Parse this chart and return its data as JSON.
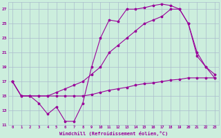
{
  "xlabel": "Windchill (Refroidissement éolien,°C)",
  "bg_color": "#cceedd",
  "grid_color": "#aabbcc",
  "line_color": "#990099",
  "xlim": [
    -0.5,
    23.5
  ],
  "ylim": [
    11,
    28
  ],
  "xticks": [
    0,
    1,
    2,
    3,
    4,
    5,
    6,
    7,
    8,
    9,
    10,
    11,
    12,
    13,
    14,
    15,
    16,
    17,
    18,
    19,
    20,
    21,
    22,
    23
  ],
  "yticks": [
    11,
    13,
    15,
    17,
    19,
    21,
    23,
    25,
    27
  ],
  "line1_x": [
    0,
    1,
    2,
    3,
    4,
    5,
    6,
    7,
    8,
    9,
    10,
    11,
    12,
    13,
    14,
    15,
    16,
    17,
    18,
    19,
    20,
    21,
    22,
    23
  ],
  "line1_y": [
    17,
    15,
    15,
    14,
    12.5,
    13.5,
    11.5,
    11.5,
    14,
    19,
    23,
    25.5,
    25.3,
    27,
    27,
    27.2,
    27.5,
    27.7,
    27.5,
    27,
    25,
    20.5,
    19,
    17.5
  ],
  "line2_x": [
    0,
    1,
    2,
    3,
    4,
    5,
    6,
    7,
    8,
    9,
    10,
    11,
    12,
    13,
    14,
    15,
    16,
    17,
    18,
    19,
    20,
    21,
    22,
    23
  ],
  "line2_y": [
    17,
    15,
    15,
    15,
    15,
    15.5,
    16,
    16.5,
    17,
    18,
    19,
    21,
    22,
    23,
    24,
    25,
    25.5,
    26,
    27,
    27,
    25,
    21,
    19,
    18
  ],
  "line3_x": [
    0,
    1,
    2,
    3,
    4,
    5,
    6,
    7,
    8,
    9,
    10,
    11,
    12,
    13,
    14,
    15,
    16,
    17,
    18,
    19,
    20,
    21,
    22,
    23
  ],
  "line3_y": [
    17,
    15,
    15,
    15,
    15,
    15,
    15,
    15,
    15,
    15.2,
    15.5,
    15.8,
    16,
    16.2,
    16.5,
    16.7,
    16.8,
    17,
    17.2,
    17.3,
    17.5,
    17.5,
    17.5,
    17.5
  ]
}
